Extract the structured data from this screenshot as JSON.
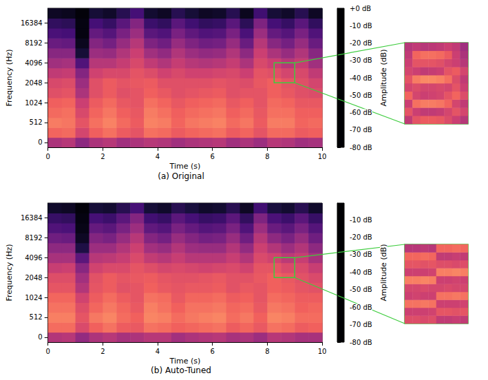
{
  "chart_data": [
    {
      "type": "heatmap",
      "title": "(a) Original",
      "x_label": "Time (s)",
      "y_label": "Frequency (Hz)",
      "xlim": [
        0,
        10
      ],
      "xticks": [
        0,
        2,
        4,
        6,
        8,
        10
      ],
      "y_categories": [
        0,
        null,
        512,
        null,
        1024,
        null,
        2048,
        null,
        4096,
        null,
        8192,
        null,
        16384,
        null
      ],
      "time_bins": [
        0,
        0.5,
        1,
        1.5,
        2,
        2.5,
        3,
        3.5,
        4,
        4.5,
        5,
        5.5,
        6,
        6.5,
        7,
        7.5,
        8,
        8.5,
        9,
        9.5,
        10
      ],
      "cells": [
        [
          -42,
          -40,
          -48,
          -42,
          -40,
          -44,
          -42,
          -40,
          -41,
          -44,
          -42,
          -41,
          -40,
          -44,
          -42,
          -45,
          -40,
          -41,
          -44,
          -43
        ],
        [
          -26,
          -25,
          -34,
          -27,
          -24,
          -28,
          -30,
          -24,
          -25,
          -28,
          -26,
          -25,
          -24,
          -28,
          -26,
          -30,
          -25,
          -25,
          -28,
          -27
        ],
        [
          -22,
          -23,
          -30,
          -24,
          -21,
          -25,
          -28,
          -21,
          -22,
          -26,
          -23,
          -22,
          -21,
          -25,
          -23,
          -28,
          -22,
          -22,
          -26,
          -25
        ],
        [
          -25,
          -24,
          -33,
          -26,
          -23,
          -27,
          -29,
          -22,
          -24,
          -27,
          -25,
          -24,
          -23,
          -27,
          -25,
          -29,
          -24,
          -24,
          -27,
          -27
        ],
        [
          -27,
          -26,
          -36,
          -28,
          -25,
          -29,
          -30,
          -24,
          -26,
          -29,
          -27,
          -26,
          -25,
          -29,
          -27,
          -30,
          -25,
          -26,
          -29,
          -29
        ],
        [
          -31,
          -30,
          -42,
          -31,
          -28,
          -31,
          -30,
          -27,
          -29,
          -31,
          -30,
          -29,
          -28,
          -31,
          -30,
          -30,
          -27,
          -29,
          -31,
          -32
        ],
        [
          -33,
          -32,
          -45,
          -31,
          -28,
          -30,
          -29,
          -28,
          -31,
          -31,
          -31,
          -31,
          -30,
          -31,
          -32,
          -29,
          -27,
          -30,
          -31,
          -34
        ],
        [
          -38,
          -37,
          -50,
          -35,
          -33,
          -33,
          -30,
          -32,
          -35,
          -33,
          -35,
          -35,
          -34,
          -33,
          -36,
          -30,
          -31,
          -34,
          -33,
          -38
        ],
        [
          -44,
          -43,
          -60,
          -40,
          -40,
          -37,
          -33,
          -38,
          -41,
          -37,
          -40,
          -41,
          -40,
          -37,
          -42,
          -33,
          -36,
          -40,
          -37,
          -44
        ],
        [
          -49,
          -49,
          -72,
          -45,
          -46,
          -41,
          -36,
          -44,
          -47,
          -41,
          -45,
          -47,
          -46,
          -41,
          -48,
          -36,
          -42,
          -46,
          -41,
          -49
        ],
        [
          -55,
          -56,
          -76,
          -50,
          -53,
          -46,
          -40,
          -51,
          -54,
          -46,
          -51,
          -54,
          -53,
          -46,
          -55,
          -40,
          -49,
          -53,
          -46,
          -55
        ],
        [
          -61,
          -62,
          -78,
          -56,
          -59,
          -52,
          -45,
          -58,
          -60,
          -52,
          -57,
          -60,
          -59,
          -52,
          -61,
          -45,
          -56,
          -59,
          -52,
          -60
        ],
        [
          -66,
          -67,
          -78,
          -62,
          -65,
          -58,
          -50,
          -64,
          -66,
          -58,
          -63,
          -66,
          -65,
          -58,
          -67,
          -51,
          -62,
          -65,
          -58,
          -66
        ],
        [
          -75,
          -76,
          -79,
          -72,
          -74,
          -68,
          -62,
          -73,
          -75,
          -68,
          -72,
          -75,
          -74,
          -68,
          -76,
          -63,
          -72,
          -74,
          -68,
          -75
        ]
      ],
      "colorbar": {
        "label": "Amplitude (dB)",
        "range": [
          -80,
          0
        ],
        "ticks": [
          {
            "value": 0,
            "label": "+0 dB"
          },
          {
            "value": -10,
            "label": "-10 dB"
          },
          {
            "value": -20,
            "label": "-20 dB"
          },
          {
            "value": -30,
            "label": "-30 dB"
          },
          {
            "value": -40,
            "label": "-40 dB"
          },
          {
            "value": -50,
            "label": "-50 dB"
          },
          {
            "value": -60,
            "label": "-60 dB"
          },
          {
            "value": -70,
            "label": "-70 dB"
          },
          {
            "value": -80,
            "label": "-80 dB"
          }
        ]
      },
      "zoom": {
        "xlim": [
          8.25,
          9.0
        ],
        "ylim": [
          2048,
          4096
        ],
        "color": "#3dcc3d",
        "cells": [
          [
            -38,
            -30,
            -28,
            -28,
            -29,
            -32,
            -36,
            -40
          ],
          [
            -30,
            -36,
            -38,
            -38,
            -37,
            -34,
            -30,
            -34
          ],
          [
            -36,
            -24,
            -22,
            -22,
            -23,
            -26,
            -34,
            -38
          ],
          [
            -26,
            -34,
            -36,
            -35,
            -34,
            -30,
            -26,
            -32
          ],
          [
            -34,
            -32,
            -34,
            -34,
            -33,
            -34,
            -30,
            -36
          ],
          [
            -30,
            -22,
            -20,
            -20,
            -21,
            -24,
            -32,
            -38
          ],
          [
            -34,
            -36,
            -38,
            -37,
            -36,
            -30,
            -28,
            -34
          ],
          [
            -36,
            -30,
            -30,
            -30,
            -31,
            -34,
            -36,
            -40
          ],
          [
            -38,
            -26,
            -24,
            -24,
            -25,
            -28,
            -36,
            -42
          ],
          [
            -40,
            -38,
            -40,
            -39,
            -38,
            -36,
            -38,
            -44
          ]
        ]
      }
    },
    {
      "type": "heatmap",
      "title": "(b) Auto-Tuned",
      "x_label": "Time (s)",
      "y_label": "Frequency (Hz)",
      "xlim": [
        0,
        10
      ],
      "xticks": [
        0,
        2,
        4,
        6,
        8,
        10
      ],
      "y_categories": [
        0,
        null,
        512,
        null,
        1024,
        null,
        2048,
        null,
        4096,
        null,
        8192,
        null,
        16384,
        null
      ],
      "time_bins": [
        0,
        0.5,
        1,
        1.5,
        2,
        2.5,
        3,
        3.5,
        4,
        4.5,
        5,
        5.5,
        6,
        6.5,
        7,
        7.5,
        8,
        8.5,
        9,
        9.5,
        10
      ],
      "cells": [
        [
          -41,
          -40,
          -47,
          -42,
          -40,
          -43,
          -42,
          -40,
          -40,
          -44,
          -42,
          -41,
          -40,
          -43,
          -42,
          -45,
          -40,
          -41,
          -43,
          -43
        ],
        [
          -25,
          -25,
          -33,
          -27,
          -24,
          -28,
          -29,
          -24,
          -25,
          -27,
          -26,
          -25,
          -24,
          -28,
          -26,
          -29,
          -24,
          -25,
          -28,
          -27
        ],
        [
          -22,
          -22,
          -30,
          -23,
          -21,
          -25,
          -27,
          -21,
          -22,
          -25,
          -23,
          -22,
          -21,
          -25,
          -23,
          -27,
          -21,
          -22,
          -25,
          -25
        ],
        [
          -24,
          -24,
          -32,
          -26,
          -23,
          -26,
          -29,
          -22,
          -24,
          -27,
          -24,
          -24,
          -23,
          -26,
          -25,
          -29,
          -23,
          -24,
          -27,
          -26
        ],
        [
          -26,
          -26,
          -35,
          -28,
          -25,
          -28,
          -30,
          -24,
          -25,
          -29,
          -26,
          -26,
          -25,
          -28,
          -27,
          -30,
          -25,
          -26,
          -28,
          -28
        ],
        [
          -30,
          -30,
          -41,
          -30,
          -28,
          -31,
          -30,
          -27,
          -29,
          -30,
          -29,
          -29,
          -28,
          -31,
          -29,
          -30,
          -27,
          -28,
          -30,
          -31
        ],
        [
          -32,
          -32,
          -44,
          -31,
          -28,
          -30,
          -29,
          -28,
          -30,
          -31,
          -31,
          -30,
          -29,
          -31,
          -31,
          -29,
          -27,
          -29,
          -31,
          -33
        ],
        [
          -37,
          -36,
          -49,
          -35,
          -33,
          -33,
          -30,
          -32,
          -34,
          -33,
          -34,
          -35,
          -34,
          -33,
          -35,
          -30,
          -30,
          -33,
          -33,
          -37
        ],
        [
          -43,
          -43,
          -58,
          -40,
          -39,
          -37,
          -33,
          -38,
          -40,
          -37,
          -40,
          -40,
          -40,
          -37,
          -41,
          -33,
          -35,
          -39,
          -37,
          -43
        ],
        [
          -48,
          -48,
          -70,
          -45,
          -45,
          -41,
          -36,
          -44,
          -46,
          -41,
          -45,
          -46,
          -46,
          -41,
          -47,
          -36,
          -41,
          -45,
          -41,
          -48
        ],
        [
          -54,
          -55,
          -75,
          -50,
          -52,
          -46,
          -40,
          -50,
          -53,
          -46,
          -50,
          -53,
          -52,
          -46,
          -54,
          -40,
          -48,
          -52,
          -46,
          -54
        ],
        [
          -60,
          -61,
          -77,
          -56,
          -58,
          -52,
          -45,
          -57,
          -59,
          -52,
          -56,
          -59,
          -58,
          -52,
          -60,
          -45,
          -55,
          -58,
          -52,
          -59
        ],
        [
          -65,
          -66,
          -78,
          -62,
          -64,
          -58,
          -50,
          -63,
          -65,
          -58,
          -62,
          -65,
          -64,
          -58,
          -66,
          -51,
          -61,
          -64,
          -58,
          -65
        ],
        [
          -74,
          -75,
          -79,
          -72,
          -73,
          -68,
          -62,
          -72,
          -74,
          -68,
          -71,
          -74,
          -73,
          -68,
          -75,
          -63,
          -71,
          -73,
          -68,
          -74
        ]
      ],
      "colorbar": {
        "label": "Amplitude (dB)",
        "range": [
          -80,
          -0.5
        ],
        "ticks": [
          {
            "value": -10,
            "label": "-10 dB"
          },
          {
            "value": -20,
            "label": "-20 dB"
          },
          {
            "value": -30,
            "label": "-30 dB"
          },
          {
            "value": -40,
            "label": "-40 dB"
          },
          {
            "value": -50,
            "label": "-50 dB"
          },
          {
            "value": -60,
            "label": "-60 dB"
          },
          {
            "value": -70,
            "label": "-70 dB"
          },
          {
            "value": -80,
            "label": "-80 dB"
          }
        ]
      },
      "zoom": {
        "xlim": [
          8.25,
          9.0
        ],
        "ylim": [
          2048,
          4096
        ],
        "color": "#3dcc3d",
        "cells": [
          [
            -32,
            -32,
            -33,
            -32,
            -38,
            -38,
            -37,
            -38
          ],
          [
            -36,
            -36,
            -36,
            -35,
            -30,
            -30,
            -31,
            -30
          ],
          [
            -24,
            -24,
            -23,
            -24,
            -36,
            -36,
            -36,
            -35
          ],
          [
            -36,
            -35,
            -36,
            -36,
            -24,
            -24,
            -23,
            -24
          ],
          [
            -34,
            -34,
            -33,
            -34,
            -34,
            -33,
            -34,
            -34
          ],
          [
            -22,
            -22,
            -21,
            -22,
            -36,
            -36,
            -35,
            -36
          ],
          [
            -36,
            -36,
            -36,
            -35,
            -22,
            -22,
            -21,
            -22
          ],
          [
            -30,
            -30,
            -31,
            -30,
            -32,
            -32,
            -33,
            -32
          ],
          [
            -26,
            -26,
            -25,
            -26,
            -38,
            -38,
            -37,
            -38
          ],
          [
            -40,
            -40,
            -39,
            -40,
            -26,
            -26,
            -25,
            -26
          ]
        ]
      }
    }
  ]
}
